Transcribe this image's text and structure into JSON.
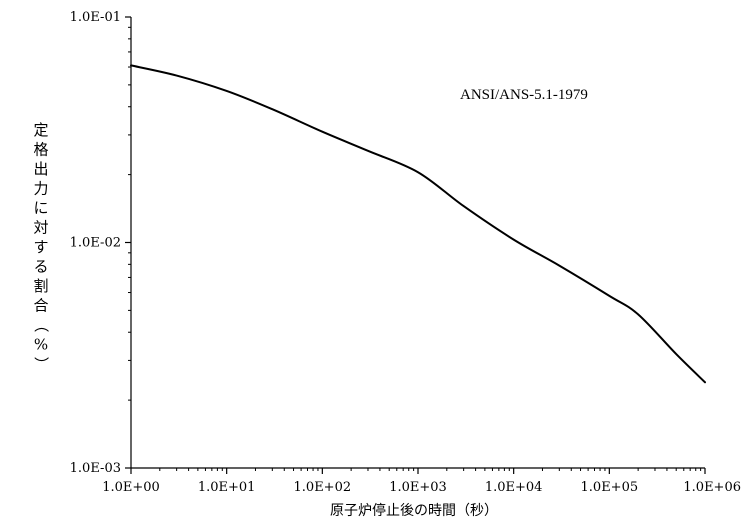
{
  "chart_data": {
    "type": "line",
    "xscale": "log",
    "yscale": "log",
    "xlim": [
      1,
      1000000
    ],
    "ylim": [
      0.001,
      0.1
    ],
    "grid": false,
    "xlabel": "原子炉停止後の時間（秒）",
    "ylabel": "定格出力に対する割合（%）",
    "x_tick_labels": [
      "1.0E+00",
      "1.0E+01",
      "1.0E+02",
      "1.0E+03",
      "1.0E+04",
      "1.0E+05",
      "1.0E+06"
    ],
    "y_tick_labels": [
      "1.0E-03",
      "1.0E-02",
      "1.0E-01"
    ],
    "annotations": [
      "ANSI/ANS-5.1-1979"
    ],
    "series": [
      {
        "x": [
          1,
          3,
          10,
          30,
          100,
          300,
          1000,
          3000,
          10000,
          30000,
          100000,
          200000,
          500000,
          1000000
        ],
        "y": [
          0.061,
          0.055,
          0.047,
          0.039,
          0.031,
          0.0255,
          0.0205,
          0.0145,
          0.0103,
          0.0079,
          0.0058,
          0.0048,
          0.0032,
          0.0024
        ]
      }
    ]
  }
}
